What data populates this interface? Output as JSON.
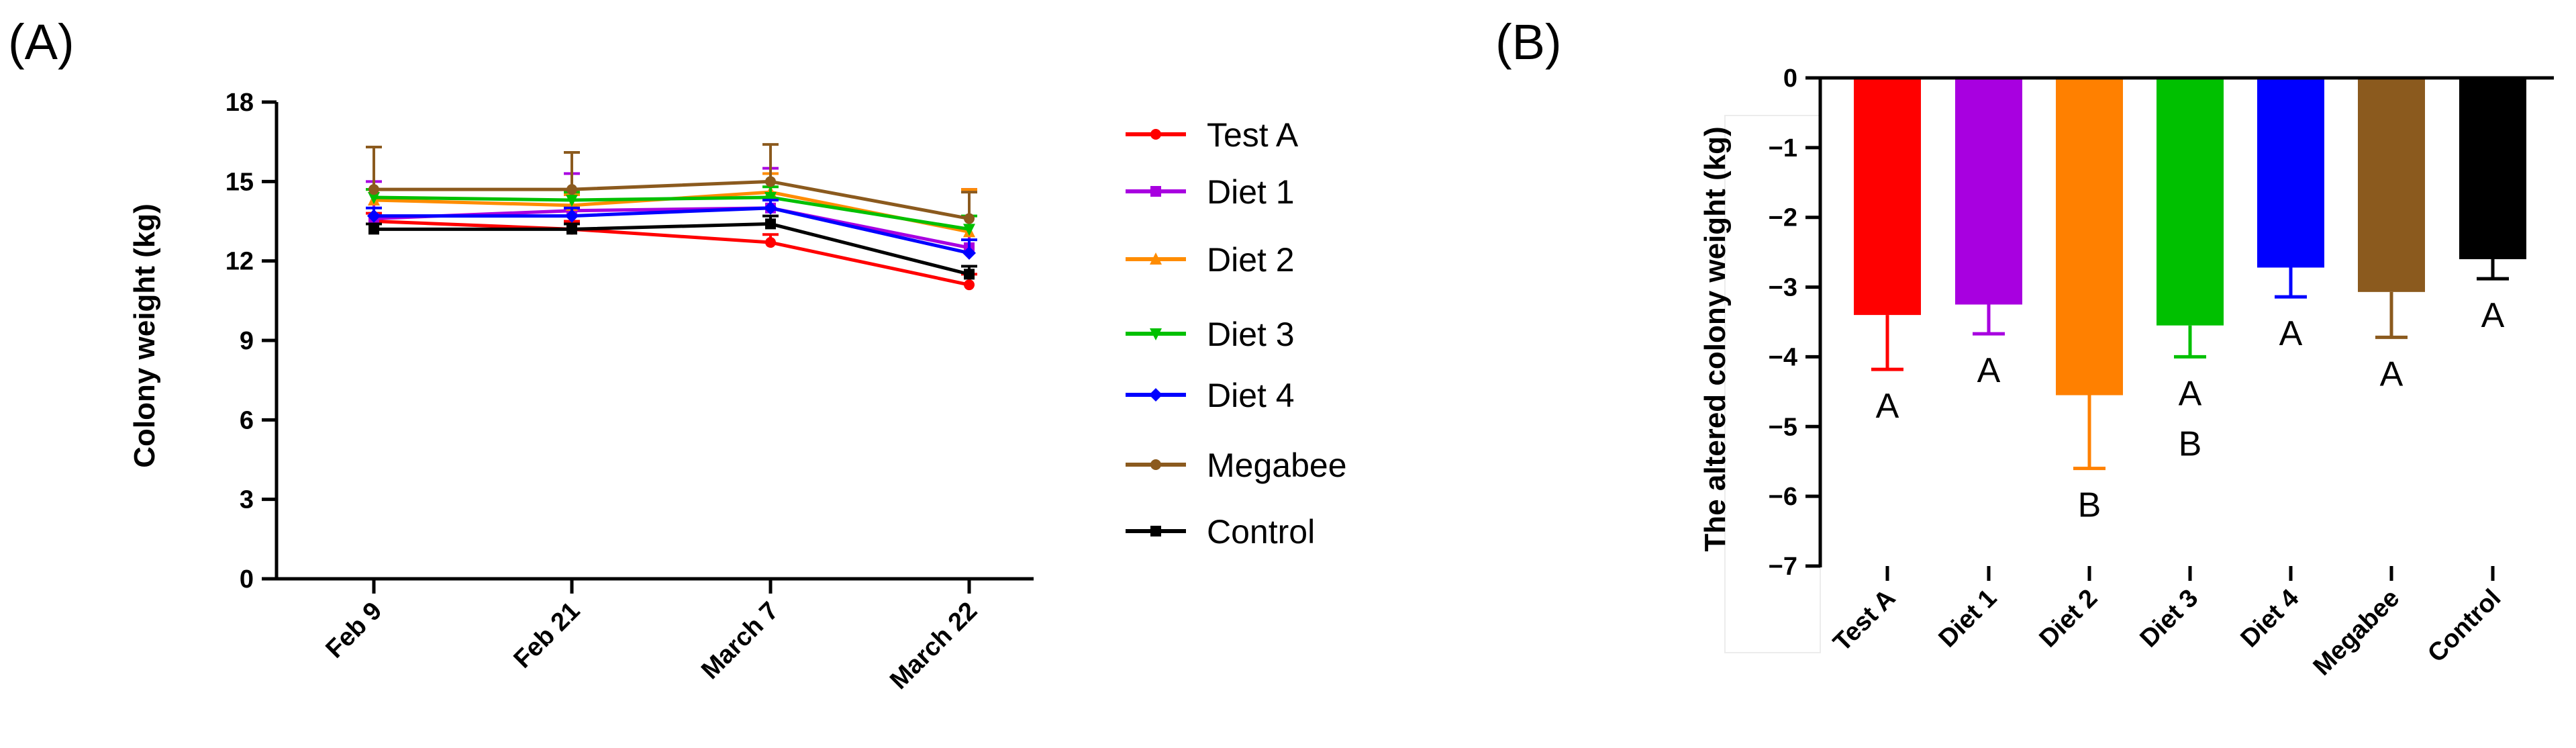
{
  "chart_data": [
    {
      "panel_label": "(A)",
      "type": "line",
      "title": "",
      "xlabel": "",
      "ylabel": "Colony weight (kg)",
      "ylim": [
        0,
        18
      ],
      "yticks": [
        0,
        3,
        6,
        9,
        12,
        15,
        18
      ],
      "categories": [
        "Feb  9",
        "Feb 21",
        "March 7",
        "March 22"
      ],
      "legend_position": "right",
      "series": [
        {
          "name": "Test A",
          "color": "#FF0000",
          "marker": "circle",
          "values": [
            13.5,
            13.2,
            12.7,
            11.1
          ],
          "err": [
            0.3,
            0.3,
            0.3,
            0.4
          ]
        },
        {
          "name": "Diet 1",
          "color": "#A800E0",
          "marker": "square",
          "values": [
            13.6,
            13.9,
            14.0,
            12.5
          ],
          "err": [
            1.4,
            1.4,
            1.5,
            2.2
          ]
        },
        {
          "name": "Diet 2",
          "color": "#FF8C00",
          "marker": "triangle-up",
          "values": [
            14.3,
            14.1,
            14.6,
            13.1
          ],
          "err": [
            0.4,
            0.4,
            0.7,
            1.6
          ]
        },
        {
          "name": "Diet 3",
          "color": "#00C000",
          "marker": "triangle-down",
          "values": [
            14.4,
            14.3,
            14.4,
            13.2
          ],
          "err": [
            0.3,
            0.3,
            0.4,
            0.5
          ]
        },
        {
          "name": "Diet 4",
          "color": "#0000FF",
          "marker": "diamond",
          "values": [
            13.7,
            13.7,
            14.0,
            12.3
          ],
          "err": [
            0.3,
            0.3,
            0.3,
            0.5
          ]
        },
        {
          "name": "Megabee",
          "color": "#8B5A1E",
          "marker": "circle",
          "values": [
            14.7,
            14.7,
            15.0,
            13.6
          ],
          "err": [
            1.6,
            1.4,
            1.4,
            1.0
          ]
        },
        {
          "name": "Control",
          "color": "#000000",
          "marker": "square",
          "values": [
            13.2,
            13.2,
            13.4,
            11.5
          ],
          "err": [
            0.2,
            0.2,
            0.3,
            0.3
          ]
        }
      ]
    },
    {
      "panel_label": "(B)",
      "type": "bar",
      "title": "",
      "xlabel": "",
      "ylabel": "The altered colony weight (kg)",
      "ylim": [
        -7,
        0
      ],
      "yticks": [
        0,
        -1,
        -2,
        -3,
        -4,
        -5,
        -6,
        -7
      ],
      "ytick_labels": [
        "0",
        "−1",
        "−2",
        "−3",
        "−4",
        "−5",
        "−6",
        "−7"
      ],
      "categories": [
        "Test A",
        "Diet 1",
        "Diet 2",
        "Diet 3",
        "Diet 4",
        "Megabee",
        "Control"
      ],
      "values": [
        -3.4,
        -3.25,
        -4.55,
        -3.55,
        -2.72,
        -3.07,
        -2.6
      ],
      "err": [
        0.78,
        0.42,
        1.05,
        0.45,
        0.42,
        0.65,
        0.28
      ],
      "colors": [
        "#FF0000",
        "#A800E0",
        "#FF8000",
        "#00C000",
        "#0000FF",
        "#8B5A1E",
        "#000000"
      ],
      "significance": [
        [
          "A"
        ],
        [
          "A"
        ],
        [
          "B"
        ],
        [
          "A",
          "B"
        ],
        [
          "A"
        ],
        [
          "A"
        ],
        [
          "A"
        ]
      ]
    }
  ]
}
